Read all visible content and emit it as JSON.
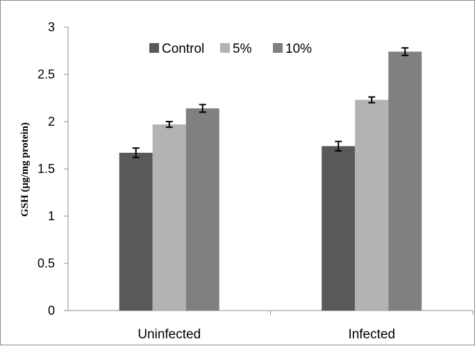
{
  "chart_data": {
    "type": "bar",
    "title": "",
    "xlabel": "",
    "ylabel": "GSH (µg/mg protein)",
    "ylim": [
      0,
      3
    ],
    "yticks": [
      "0",
      "0.5",
      "1",
      "1.5",
      "2",
      "2.5",
      "3"
    ],
    "categories": [
      "Uninfected",
      "Infected"
    ],
    "series": [
      {
        "name": "Control",
        "color": "#595959",
        "values": [
          1.67,
          1.74
        ],
        "errors": [
          0.05,
          0.05
        ]
      },
      {
        "name": "5%",
        "color": "#b3b3b3",
        "values": [
          1.97,
          2.23
        ],
        "errors": [
          0.03,
          0.03
        ]
      },
      {
        "name": "10%",
        "color": "#808080",
        "values": [
          2.14,
          2.74
        ],
        "errors": [
          0.04,
          0.04
        ]
      }
    ],
    "grid": false,
    "legend_position": "top-center"
  }
}
